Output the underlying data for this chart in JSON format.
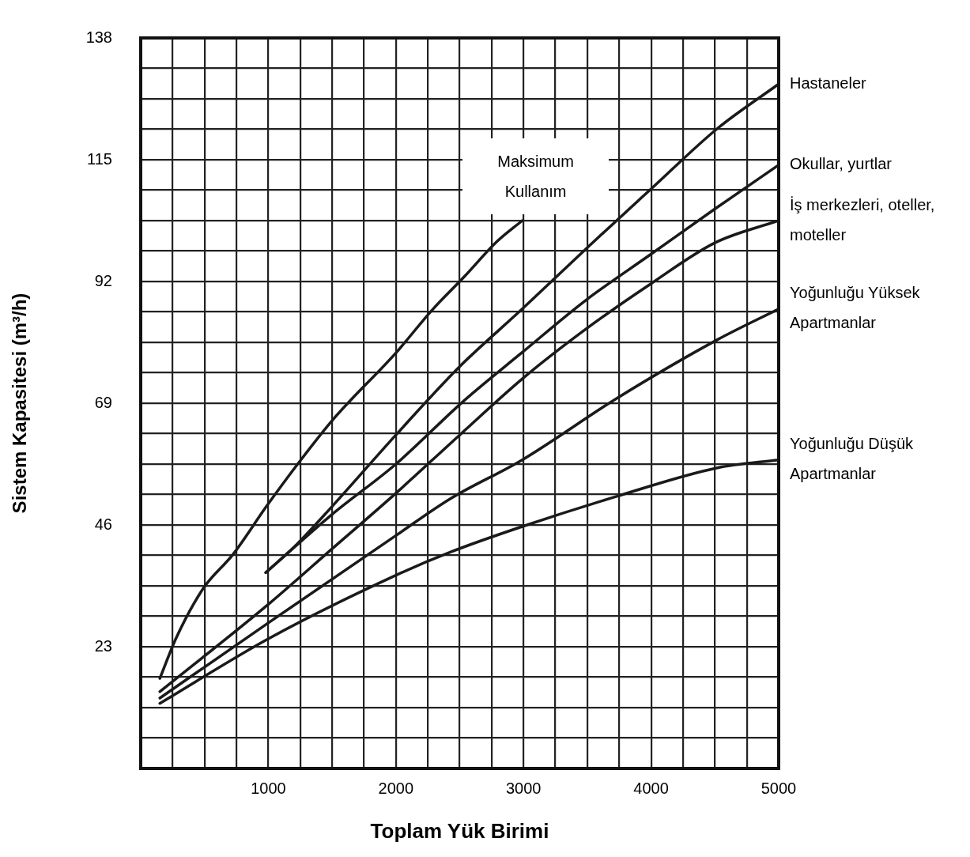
{
  "chart_data": {
    "type": "line",
    "xlabel": "Toplam Yük Birimi",
    "ylabel": "Sistem Kapasitesi (m³/h)",
    "xlim": [
      0,
      5000
    ],
    "ylim": [
      0,
      138
    ],
    "xticks": [
      {
        "value": 0,
        "label": null
      },
      {
        "value": 250,
        "label": null
      },
      {
        "value": 500,
        "label": null
      },
      {
        "value": 750,
        "label": null
      },
      1000,
      {
        "value": 1250,
        "label": null
      },
      {
        "value": 1500,
        "label": null
      },
      {
        "value": 1750,
        "label": null
      },
      2000,
      {
        "value": 2250,
        "label": null
      },
      {
        "value": 2500,
        "label": null
      },
      {
        "value": 2750,
        "label": null
      },
      3000,
      {
        "value": 3250,
        "label": null
      },
      {
        "value": 3500,
        "label": null
      },
      {
        "value": 3750,
        "label": null
      },
      4000,
      {
        "value": 4250,
        "label": null
      },
      {
        "value": 4500,
        "label": null
      },
      {
        "value": 4750,
        "label": null
      },
      5000
    ],
    "yticks": [
      {
        "value": 0,
        "label": null
      },
      {
        "value": 5.75,
        "label": null
      },
      {
        "value": 11.5,
        "label": null
      },
      {
        "value": 17.25,
        "label": null
      },
      23,
      {
        "value": 28.75,
        "label": null
      },
      {
        "value": 34.5,
        "label": null
      },
      {
        "value": 40.25,
        "label": null
      },
      46,
      {
        "value": 51.75,
        "label": null
      },
      {
        "value": 57.5,
        "label": null
      },
      {
        "value": 63.25,
        "label": null
      },
      69,
      {
        "value": 74.75,
        "label": null
      },
      {
        "value": 80.5,
        "label": null
      },
      {
        "value": 86.25,
        "label": null
      },
      92,
      {
        "value": 97.75,
        "label": null
      },
      {
        "value": 103.5,
        "label": null
      },
      {
        "value": 109.25,
        "label": null
      },
      115,
      {
        "value": 120.75,
        "label": null
      },
      {
        "value": 126.5,
        "label": null
      },
      {
        "value": 132.25,
        "label": null
      },
      138
    ],
    "grid": true,
    "legend": false,
    "marker": "none",
    "line_style": "solid",
    "series": [
      {
        "name": "Maksimum Kullanım",
        "color": "#1a1a1a",
        "x": [
          150,
          275,
          490,
          725,
          985,
          1230,
          1510,
          2000,
          2280,
          2540,
          2790,
          2990
        ],
        "values": [
          17,
          24.5,
          34,
          40.5,
          49.5,
          57.5,
          66,
          78.5,
          86.5,
          93,
          99.5,
          103.5
        ]
      },
      {
        "name": "Hastaneler",
        "color": "#1a1a1a",
        "x": [
          980,
          1230,
          1500,
          2000,
          2490,
          2990,
          3500,
          4010,
          4520,
          5000
        ],
        "values": [
          37,
          42.5,
          49.5,
          63,
          75.7,
          86.8,
          98.4,
          109.7,
          120.9,
          129.3
        ]
      },
      {
        "name": "Okullar, yurtlar",
        "color": "#1a1a1a",
        "x": [
          980,
          1500,
          2000,
          2530,
          2990,
          3480,
          3990,
          4500,
          5000
        ],
        "values": [
          37,
          48,
          57.5,
          69.4,
          78.6,
          88.3,
          97,
          105.7,
          114
        ]
      },
      {
        "name": "İş merkezleri, oteller, moteller",
        "color": "#1a1a1a",
        "x": [
          150,
          1000,
          1500,
          2000,
          2500,
          3000,
          3500,
          4000,
          4500,
          5000
        ],
        "values": [
          14.5,
          31,
          41.5,
          52,
          63,
          73.8,
          83.2,
          91.6,
          99.3,
          103.5
        ]
      },
      {
        "name": "Yoğunluğu Yüksek Apartmanlar",
        "color": "#1a1a1a",
        "x": [
          150,
          1000,
          2000,
          2430,
          2990,
          3730,
          4520,
          5000
        ],
        "values": [
          13.3,
          27.5,
          44,
          51,
          58.3,
          69.9,
          81,
          86.8
        ]
      },
      {
        "name": "Yoğunluğu Düşük Apartmanlar",
        "color": "#1a1a1a",
        "x": [
          150,
          1000,
          2000,
          2430,
          2990,
          3730,
          4520,
          5000
        ],
        "values": [
          12.3,
          24.5,
          36.5,
          40.9,
          45.7,
          51.4,
          56.8,
          58.3
        ]
      }
    ]
  }
}
